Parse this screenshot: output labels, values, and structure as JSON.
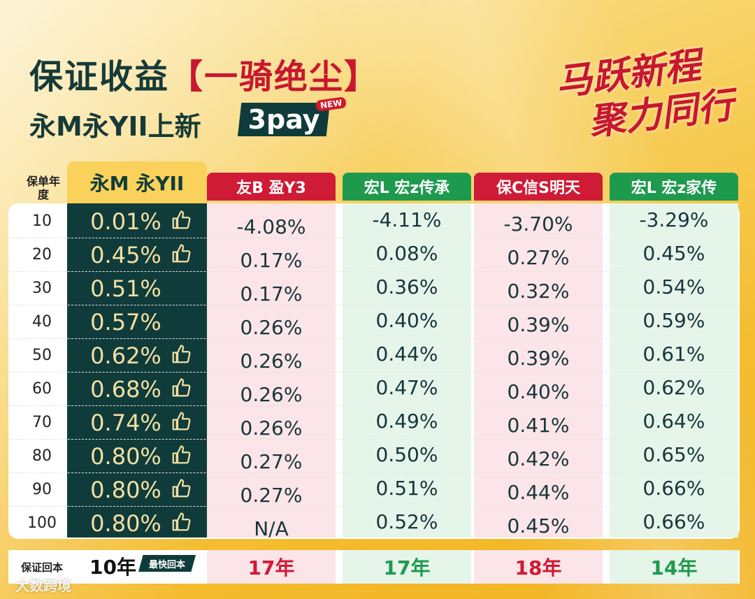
{
  "title": {
    "line1_prefix": "保证收益",
    "line1_highlight": "【一骑绝尘】",
    "line2": "永M永YII上新",
    "badge": "3pay",
    "new_badge": "NEW"
  },
  "slogan": {
    "line1": "马跃新程",
    "line2": "聚力同行"
  },
  "table": {
    "year_header": "保单年度",
    "columns": [
      {
        "name": "永M 永YII",
        "color": "#fad15b"
      },
      {
        "name": "友B 盈Y3",
        "color": "#cf1b35"
      },
      {
        "name": "宏L 宏z传承",
        "color": "#1e9a4e"
      },
      {
        "name": "保C信S明天",
        "color": "#cf1b35"
      },
      {
        "name": "宏L 宏z家传",
        "color": "#1e9a4e"
      }
    ],
    "rows": [
      {
        "year": "10",
        "recommended": true,
        "values": [
          "0.01%",
          "-4.08%",
          "-4.11%",
          "-3.70%",
          "-3.29%"
        ]
      },
      {
        "year": "20",
        "recommended": true,
        "values": [
          "0.45%",
          "0.17%",
          "0.08%",
          "0.27%",
          "0.45%"
        ]
      },
      {
        "year": "30",
        "recommended": false,
        "values": [
          "0.51%",
          "0.17%",
          "0.36%",
          "0.32%",
          "0.54%"
        ]
      },
      {
        "year": "40",
        "recommended": false,
        "values": [
          "0.57%",
          "0.26%",
          "0.40%",
          "0.39%",
          "0.59%"
        ]
      },
      {
        "year": "50",
        "recommended": true,
        "values": [
          "0.62%",
          "0.26%",
          "0.44%",
          "0.39%",
          "0.61%"
        ]
      },
      {
        "year": "60",
        "recommended": true,
        "values": [
          "0.68%",
          "0.26%",
          "0.47%",
          "0.40%",
          "0.62%"
        ]
      },
      {
        "year": "70",
        "recommended": true,
        "values": [
          "0.74%",
          "0.26%",
          "0.49%",
          "0.41%",
          "0.64%"
        ]
      },
      {
        "year": "80",
        "recommended": true,
        "values": [
          "0.80%",
          "0.27%",
          "0.50%",
          "0.42%",
          "0.65%"
        ]
      },
      {
        "year": "90",
        "recommended": true,
        "values": [
          "0.80%",
          "0.27%",
          "0.51%",
          "0.44%",
          "0.66%"
        ]
      },
      {
        "year": "100",
        "recommended": true,
        "values": [
          "0.80%",
          "N/A",
          "0.52%",
          "0.45%",
          "0.66%"
        ]
      }
    ],
    "footer": {
      "label": "保证回本",
      "main_value": "10年",
      "fast_badge": "最快回本",
      "values": [
        "17年",
        "17年",
        "18年",
        "14年"
      ]
    }
  },
  "watermark": "大数跨境",
  "colors": {
    "dark_teal": "#0f3c3a",
    "red": "#cf1b35",
    "green": "#1e9a4e",
    "gold": "#fad15b"
  }
}
